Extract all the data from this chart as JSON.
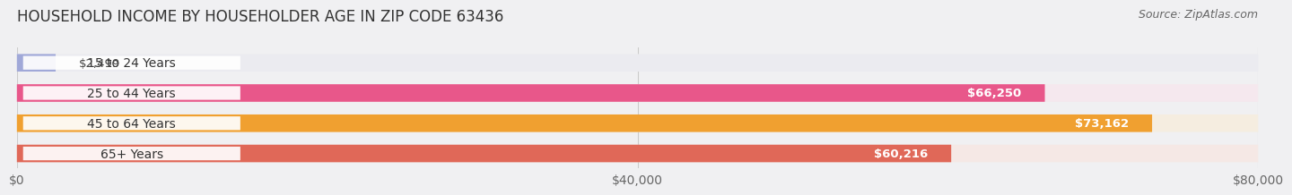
{
  "title": "HOUSEHOLD INCOME BY HOUSEHOLDER AGE IN ZIP CODE 63436",
  "source": "Source: ZipAtlas.com",
  "categories": [
    "15 to 24 Years",
    "25 to 44 Years",
    "45 to 64 Years",
    "65+ Years"
  ],
  "values": [
    2499,
    66250,
    73162,
    60216
  ],
  "bar_colors": [
    "#a0a8d8",
    "#e8578a",
    "#f0a030",
    "#e06858"
  ],
  "bar_bg_colors": [
    "#ebebf0",
    "#f5e8ee",
    "#f5ede0",
    "#f5e8e5"
  ],
  "value_labels": [
    "$2,499",
    "$66,250",
    "$73,162",
    "$60,216"
  ],
  "value_label_inside": [
    false,
    true,
    true,
    true
  ],
  "xlim": [
    0,
    80000
  ],
  "xticks": [
    0,
    40000,
    80000
  ],
  "xticklabels": [
    "$0",
    "$40,000",
    "$80,000"
  ],
  "background_color": "#f0f0f2",
  "title_fontsize": 12,
  "source_fontsize": 9,
  "cat_fontsize": 10,
  "value_fontsize": 9.5,
  "bar_height": 0.58
}
